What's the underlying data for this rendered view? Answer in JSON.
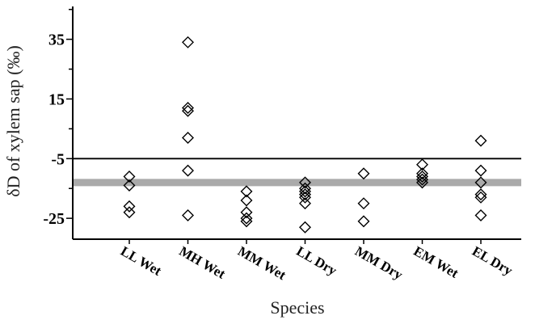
{
  "chart_data": {
    "type": "scatter",
    "xlabel": "Species",
    "ylabel": "δD of xylem sap (‰)",
    "ylim": [
      -32,
      46
    ],
    "yticks": [
      35,
      15,
      -5,
      -25
    ],
    "categories": [
      "LL Wet",
      "MH Wet",
      "MM Wet",
      "LL Dry",
      "MM Dry",
      "EM Wet",
      "EL Dry"
    ],
    "points": [
      [
        -11,
        -14,
        -21,
        -23
      ],
      [
        34,
        12,
        11,
        2,
        -9,
        -24
      ],
      [
        -16,
        -19,
        -23,
        -25,
        -26
      ],
      [
        -13,
        -15,
        -16,
        -17,
        -18,
        -20,
        -28
      ],
      [
        -10,
        -20,
        -26
      ],
      [
        -7,
        -10,
        -11,
        -12,
        -13
      ],
      [
        1,
        -9,
        -13,
        -17,
        -18,
        -24
      ]
    ],
    "reference_lines": [
      {
        "y": -5,
        "color": "#000000",
        "style": "thin"
      },
      {
        "y": -13,
        "color": "#aaaaaa",
        "style": "thick"
      }
    ],
    "grid": false,
    "marker": "diamond-open",
    "legend": "none"
  }
}
